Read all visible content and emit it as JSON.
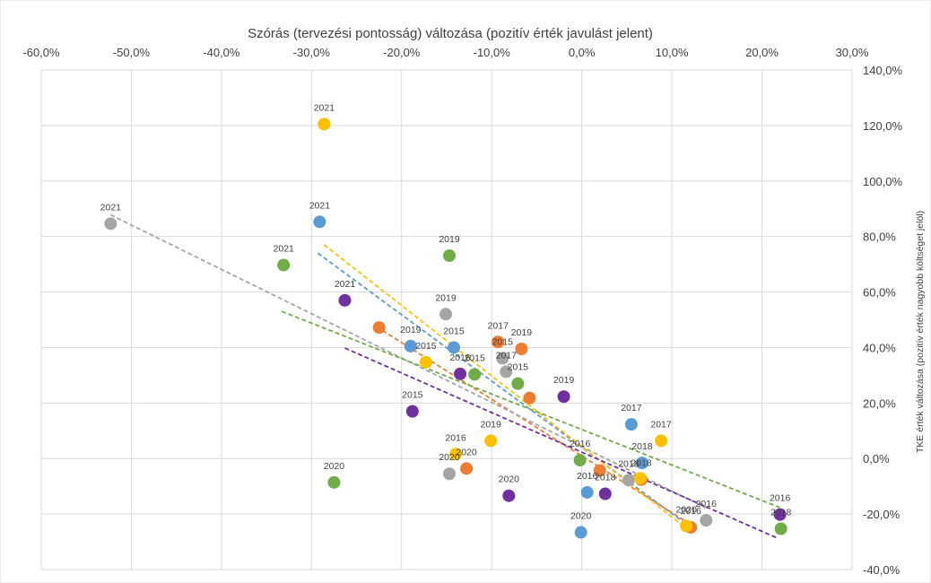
{
  "chart_data": {
    "type": "scatter",
    "title": "",
    "xlabel": "Szórás (tervezési pontosság) változása (pozitív érték javulást jelent)",
    "ylabel": "TKE érték változása (pozitív érték nagyobb költséget jelöl)",
    "xlim": [
      -0.6,
      0.3
    ],
    "ylim": [
      -0.4,
      1.4
    ],
    "x_ticks": [
      {
        "value": -0.6,
        "label": "-60,0%"
      },
      {
        "value": -0.5,
        "label": "-50,0%"
      },
      {
        "value": -0.4,
        "label": "-40,0%"
      },
      {
        "value": -0.3,
        "label": "-30,0%"
      },
      {
        "value": -0.2,
        "label": "-20,0%"
      },
      {
        "value": -0.1,
        "label": "-10,0%"
      },
      {
        "value": 0.0,
        "label": "0,0%"
      },
      {
        "value": 0.1,
        "label": "10,0%"
      },
      {
        "value": 0.2,
        "label": "20,0%"
      },
      {
        "value": 0.3,
        "label": "30,0%"
      }
    ],
    "y_ticks": [
      {
        "value": -0.4,
        "label": "-40,0%"
      },
      {
        "value": -0.2,
        "label": "-20,0%"
      },
      {
        "value": 0.0,
        "label": "0,0%"
      },
      {
        "value": 0.2,
        "label": "20,0%"
      },
      {
        "value": 0.4,
        "label": "40,0%"
      },
      {
        "value": 0.6,
        "label": "60,0%"
      },
      {
        "value": 0.8,
        "label": "80,0%"
      },
      {
        "value": 1.0,
        "label": "100,0%"
      },
      {
        "value": 1.2,
        "label": "120,0%"
      },
      {
        "value": 1.4,
        "label": "140,0%"
      }
    ],
    "grid": true,
    "legend": "none",
    "trendlines": "linear, dashed, one per series",
    "series": [
      {
        "color": "#5B9BD5",
        "points": [
          {
            "x": -0.291,
            "y": 0.853,
            "label": "2021"
          },
          {
            "x": -0.19,
            "y": 0.405,
            "label": "2019"
          },
          {
            "x": -0.142,
            "y": 0.4,
            "label": "2015"
          },
          {
            "x": 0.055,
            "y": 0.123,
            "label": "2017"
          },
          {
            "x": 0.067,
            "y": -0.016,
            "label": "2018"
          },
          {
            "x": 0.006,
            "y": -0.122,
            "label": "2016"
          },
          {
            "x": -0.001,
            "y": -0.266,
            "label": "2020"
          }
        ],
        "trend": [
          [
            -0.293,
            0.74
          ],
          [
            0.12,
            -0.246
          ]
        ]
      },
      {
        "color": "#ED7D31",
        "points": [
          {
            "x": -0.225,
            "y": 0.472,
            "label": ""
          },
          {
            "x": -0.093,
            "y": 0.42,
            "label": "2017"
          },
          {
            "x": -0.067,
            "y": 0.395,
            "label": "2019"
          },
          {
            "x": -0.058,
            "y": 0.218,
            "label": ""
          },
          {
            "x": -0.128,
            "y": -0.036,
            "label": "2020"
          },
          {
            "x": 0.02,
            "y": -0.043,
            "label": ""
          },
          {
            "x": 0.066,
            "y": -0.076,
            "label": "2018"
          },
          {
            "x": 0.121,
            "y": -0.248,
            "label": "2016"
          }
        ],
        "trend": [
          [
            -0.228,
            0.475
          ],
          [
            0.124,
            -0.244
          ]
        ]
      },
      {
        "color": "#A5A5A5",
        "points": [
          {
            "x": -0.523,
            "y": 0.846,
            "label": "2021"
          },
          {
            "x": -0.151,
            "y": 0.52,
            "label": "2019"
          },
          {
            "x": -0.088,
            "y": 0.361,
            "label": "2015"
          },
          {
            "x": -0.084,
            "y": 0.313,
            "label": "2017"
          },
          {
            "x": -0.147,
            "y": -0.055,
            "label": "2020"
          },
          {
            "x": 0.052,
            "y": -0.078,
            "label": "2018"
          },
          {
            "x": 0.138,
            "y": -0.223,
            "label": "2016"
          }
        ],
        "trend": [
          [
            -0.523,
            0.878
          ],
          [
            0.138,
            -0.178
          ]
        ]
      },
      {
        "color": "#FFC000",
        "points": [
          {
            "x": -0.286,
            "y": 1.205,
            "label": "2021"
          },
          {
            "x": -0.173,
            "y": 0.347,
            "label": "2015"
          },
          {
            "x": -0.101,
            "y": 0.064,
            "label": "2019"
          },
          {
            "x": -0.14,
            "y": 0.016,
            "label": "2016"
          },
          {
            "x": 0.088,
            "y": 0.064,
            "label": "2017"
          },
          {
            "x": 0.065,
            "y": -0.071,
            "label": ""
          },
          {
            "x": 0.116,
            "y": -0.243,
            "label": "2020"
          }
        ],
        "trend": [
          [
            -0.286,
            0.77
          ],
          [
            0.114,
            -0.246
          ]
        ]
      },
      {
        "color": "#70AD47",
        "points": [
          {
            "x": -0.331,
            "y": 0.697,
            "label": "2021"
          },
          {
            "x": -0.147,
            "y": 0.731,
            "label": "2019"
          },
          {
            "x": -0.119,
            "y": 0.303,
            "label": "2015"
          },
          {
            "x": -0.071,
            "y": 0.27,
            "label": "2015"
          },
          {
            "x": -0.275,
            "y": -0.086,
            "label": "2020"
          },
          {
            "x": -0.002,
            "y": -0.006,
            "label": "2016"
          },
          {
            "x": 0.221,
            "y": -0.253,
            "label": "2018"
          }
        ],
        "trend": [
          [
            -0.333,
            0.53
          ],
          [
            0.221,
            -0.178
          ]
        ]
      },
      {
        "color": "#7030A0",
        "points": [
          {
            "x": -0.263,
            "y": 0.57,
            "label": "2021"
          },
          {
            "x": -0.135,
            "y": 0.305,
            "label": "2016"
          },
          {
            "x": -0.188,
            "y": 0.17,
            "label": "2015"
          },
          {
            "x": -0.02,
            "y": 0.223,
            "label": "2019"
          },
          {
            "x": -0.081,
            "y": -0.134,
            "label": "2020"
          },
          {
            "x": 0.026,
            "y": -0.127,
            "label": "2018"
          },
          {
            "x": 0.22,
            "y": -0.202,
            "label": "2016"
          }
        ],
        "trend": [
          [
            -0.263,
            0.398
          ],
          [
            0.218,
            -0.288
          ]
        ]
      }
    ]
  }
}
